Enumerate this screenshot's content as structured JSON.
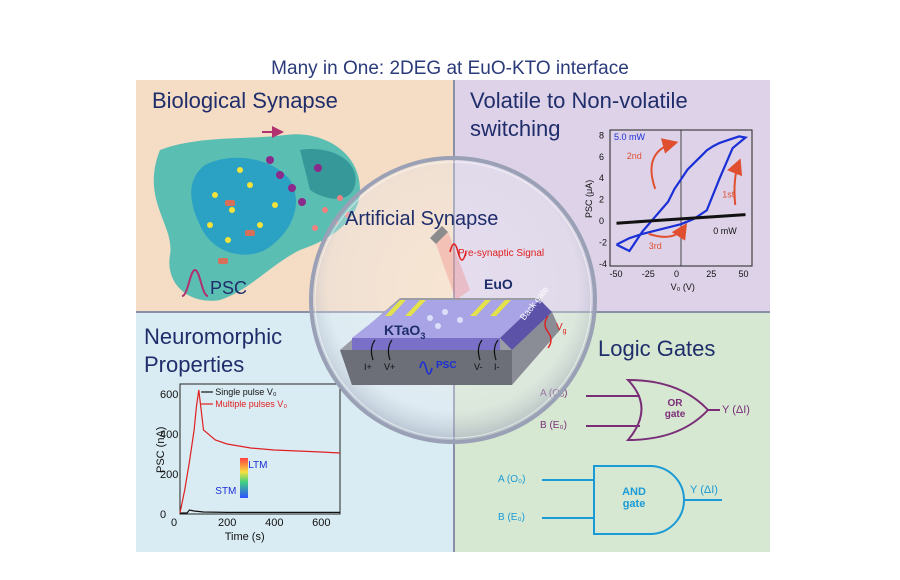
{
  "title": "Many in One: 2DEG at EuO-KTO interface",
  "bio": {
    "heading": "Biological Synapse",
    "psc": "PSC"
  },
  "volatile": {
    "heading_line1": "Volatile to Non-volatile",
    "heading_line2": "switching",
    "label_power_high": "5.0 mW",
    "label_power_low": "0 mW",
    "label_1st": "1st",
    "label_2nd": "2nd",
    "label_3rd": "3rd",
    "ylabel": "PSC (μA)",
    "xlabel": "V₀ (V)",
    "xticks": [
      "-50",
      "-25",
      "0",
      "25",
      "50"
    ],
    "yticks": [
      "8",
      "6",
      "4",
      "2",
      "0",
      "-2",
      "-4"
    ]
  },
  "center": {
    "heading": "Artificial Synapse",
    "presyn": "Pre-synaptic Signal",
    "euo": "EuO",
    "kto": "KTaO",
    "kto_sub": "3",
    "backgate": "Back gate",
    "vg": "V",
    "vg_sub": "g",
    "psc": "PSC",
    "pin_iplus": "I+",
    "pin_vplus": "V+",
    "pin_vminus": "V-",
    "pin_iminus": "I-"
  },
  "neuro": {
    "heading_line1": "Neuromorphic",
    "heading_line2": "Properties",
    "legend_single": "Single pulse V₀",
    "legend_multi": "Multiple pulses V₀",
    "ltm": "LTM",
    "stm": "STM",
    "ylabel": "PSC (nA)",
    "xlabel": "Time (s)",
    "xticks": [
      "0",
      "200",
      "400",
      "600"
    ],
    "yticks": [
      "600",
      "400",
      "200",
      "0"
    ]
  },
  "logic": {
    "heading": "Logic Gates",
    "or_a": "A (O₀)",
    "or_b": "B (E₀)",
    "or_gate_l1": "OR",
    "or_gate_l2": "gate",
    "or_y": "Y (ΔI)",
    "and_a": "A (O₀)",
    "and_b": "B (E₀)",
    "and_gate_l1": "AND",
    "and_gate_l2": "gate",
    "and_y": "Y (ΔI)"
  },
  "colors": {
    "bio_bg": "#f5dcc4",
    "vol_bg": "#ddd2e8",
    "neu_bg": "#d9ecf3",
    "log_bg": "#d6e8d2",
    "or_color": "#7a2e78",
    "and_color": "#1a9ad6",
    "hysteresis": "#1a2fd6",
    "red_curve": "#e02020"
  },
  "chart_data": [
    {
      "type": "line",
      "title": "",
      "xlabel": "V₀ (V)",
      "ylabel": "PSC (μA)",
      "xlim": [
        -55,
        55
      ],
      "ylim": [
        -4.2,
        8.5
      ],
      "series": [
        {
          "name": "5.0 mW",
          "x": [
            -50,
            -40,
            -30,
            -20,
            -10,
            0,
            10,
            20,
            30,
            40,
            50,
            45,
            40,
            35,
            30,
            25,
            20,
            15,
            10,
            5,
            0,
            -5,
            -10,
            -20,
            -30,
            -40,
            -50
          ],
          "y": [
            -2.2,
            -1.6,
            -1.2,
            -0.9,
            -0.6,
            -0.3,
            0.2,
            1.0,
            4.0,
            6.8,
            7.8,
            7.9,
            7.7,
            7.5,
            7.3,
            7.0,
            6.6,
            6.0,
            5.4,
            4.8,
            3.9,
            3.0,
            1.8,
            0.4,
            -1.0,
            -2.8,
            -2.2
          ]
        },
        {
          "name": "0 mW",
          "x": [
            -50,
            -25,
            0,
            25,
            50
          ],
          "y": [
            -0.2,
            0.0,
            0.2,
            0.4,
            0.6
          ]
        }
      ]
    },
    {
      "type": "line",
      "title": "",
      "xlabel": "Time (s)",
      "ylabel": "PSC (nA)",
      "xlim": [
        0,
        680
      ],
      "ylim": [
        0,
        650
      ],
      "series": [
        {
          "name": "Single pulse V₀",
          "x": [
            0,
            30,
            40,
            60,
            100,
            200,
            300,
            400,
            500,
            600,
            680
          ],
          "y": [
            5,
            5,
            20,
            15,
            10,
            8,
            8,
            8,
            8,
            8,
            8
          ]
        },
        {
          "name": "Multiple pulses V₀",
          "x": [
            0,
            20,
            40,
            60,
            70,
            80,
            100,
            150,
            200,
            300,
            400,
            500,
            600,
            680
          ],
          "y": [
            5,
            120,
            260,
            420,
            540,
            620,
            420,
            370,
            350,
            330,
            320,
            315,
            310,
            305
          ]
        }
      ]
    }
  ]
}
